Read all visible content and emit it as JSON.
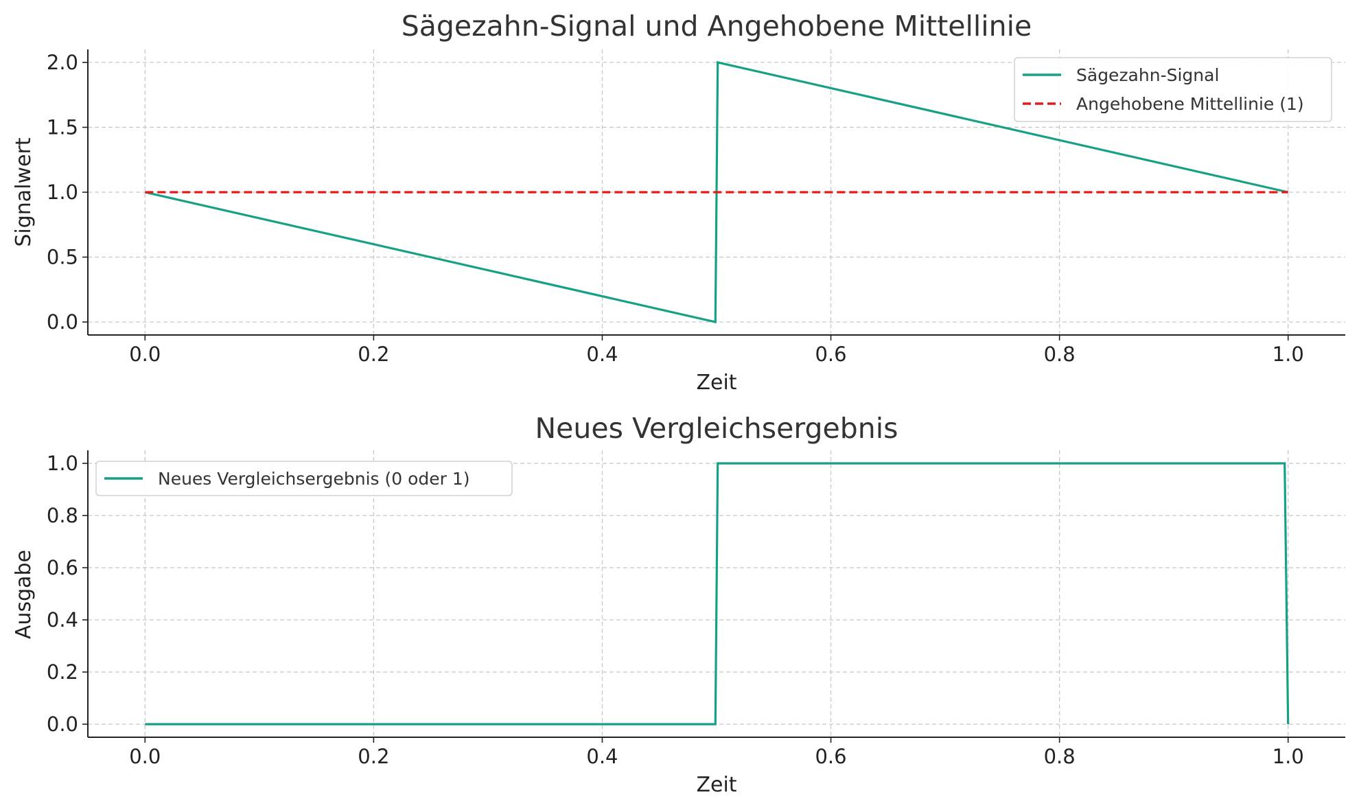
{
  "chart_data": [
    {
      "type": "line",
      "title": "Sägezahn-Signal und Angehobene Mittellinie",
      "xlabel": "Zeit",
      "ylabel": "Signalwert",
      "xlim": [
        -0.05,
        1.05
      ],
      "ylim": [
        -0.1,
        2.1
      ],
      "xticks": [
        "0.0",
        "0.2",
        "0.4",
        "0.6",
        "0.8",
        "1.0"
      ],
      "yticks": [
        "0.0",
        "0.5",
        "1.0",
        "1.5",
        "2.0"
      ],
      "grid": true,
      "legend_position": "top-right",
      "series": [
        {
          "name": "Sägezahn-Signal",
          "color": "#16a085",
          "style": "solid",
          "x": [
            0.0,
            0.499,
            0.501,
            1.0
          ],
          "y": [
            1.0,
            0.0,
            2.0,
            1.0
          ]
        },
        {
          "name": "Angehobene Mittellinie (1)",
          "color": "#e31a1c",
          "style": "dashed",
          "x": [
            0.0,
            1.0
          ],
          "y": [
            1.0,
            1.0
          ]
        }
      ]
    },
    {
      "type": "line",
      "title": "Neues Vergleichsergebnis",
      "xlabel": "Zeit",
      "ylabel": "Ausgabe",
      "xlim": [
        -0.05,
        1.05
      ],
      "ylim": [
        -0.05,
        1.05
      ],
      "xticks": [
        "0.0",
        "0.2",
        "0.4",
        "0.6",
        "0.8",
        "1.0"
      ],
      "yticks": [
        "0.0",
        "0.2",
        "0.4",
        "0.6",
        "0.8",
        "1.0"
      ],
      "grid": true,
      "legend_position": "top-left",
      "series": [
        {
          "name": "Neues Vergleichsergebnis (0 oder 1)",
          "color": "#16a085",
          "style": "solid",
          "x": [
            0.0,
            0.499,
            0.501,
            0.997,
            1.0
          ],
          "y": [
            0.0,
            0.0,
            1.0,
            1.0,
            0.0
          ]
        }
      ]
    }
  ]
}
